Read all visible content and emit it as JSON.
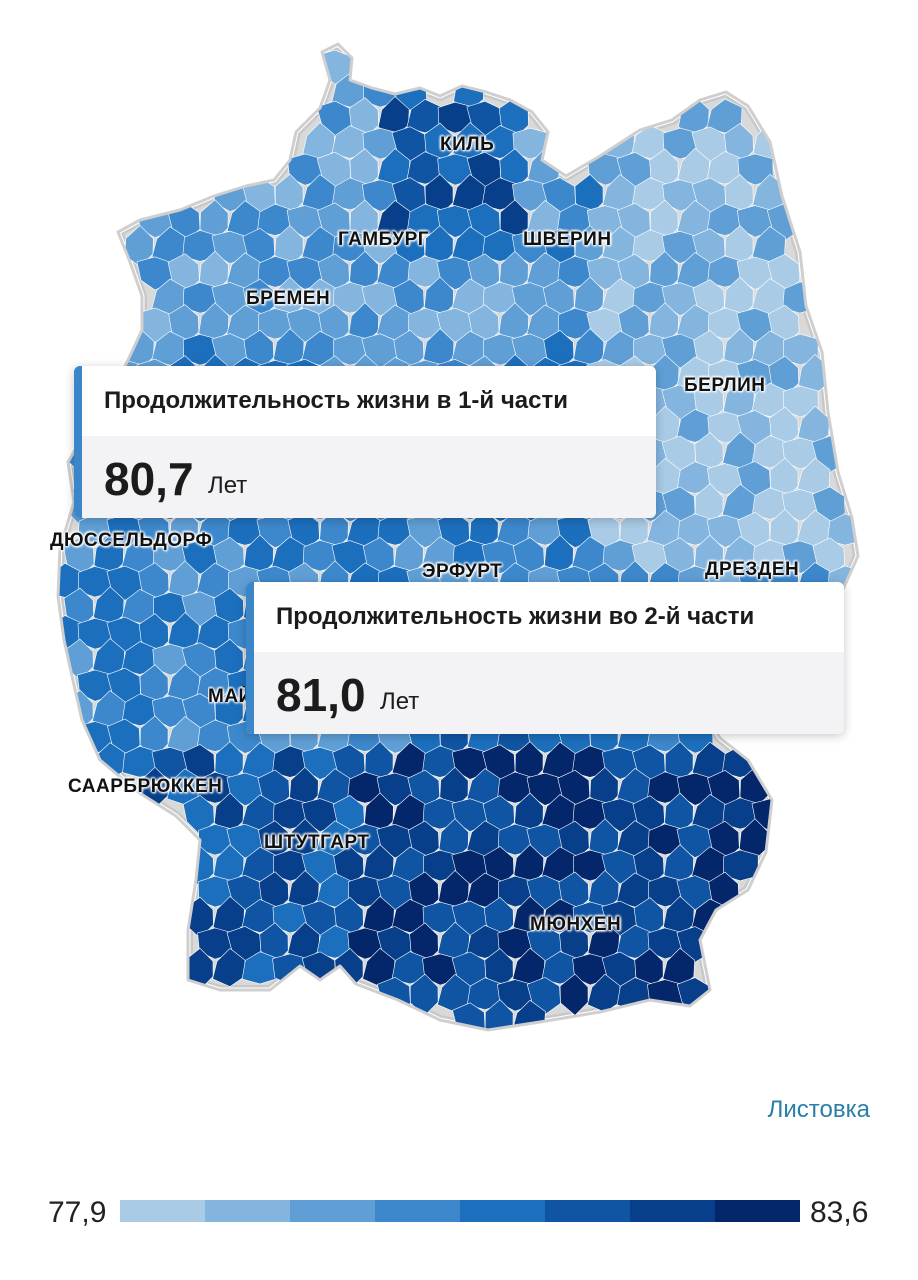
{
  "map": {
    "cities": [
      {
        "name": "КИЛЬ"
      },
      {
        "name": "ГАМБУРГ"
      },
      {
        "name": "ШВЕРИН"
      },
      {
        "name": "БРЕМЕН"
      },
      {
        "name": "БЕРЛИН"
      },
      {
        "name": "ДЮССЕЛЬДОРФ"
      },
      {
        "name": "ЭРФУРТ"
      },
      {
        "name": "ДРЕЗДЕН"
      },
      {
        "name": "МАЙНЦ"
      },
      {
        "name": "СААРБРЮККЕН"
      },
      {
        "name": "ШТУТГАРТ"
      },
      {
        "name": "МЮНХЕН"
      }
    ]
  },
  "tooltip1": {
    "title": "Продолжительность жизни в 1-й части",
    "value": "80,7",
    "unit": "Лет",
    "accent_color": "#3a86c8"
  },
  "tooltip2": {
    "title": "Продолжительность жизни во 2-й части",
    "value": "81,0",
    "unit": "Лет",
    "accent_color": "#3a86c8"
  },
  "source": {
    "label": "Листовка"
  },
  "legend": {
    "min": "77,9",
    "max": "83,6",
    "colors": [
      "#a9cbe6",
      "#84b5df",
      "#5f9fd6",
      "#3d88cc",
      "#1c6fbd",
      "#0f55a3",
      "#083f8a",
      "#04266b"
    ]
  }
}
